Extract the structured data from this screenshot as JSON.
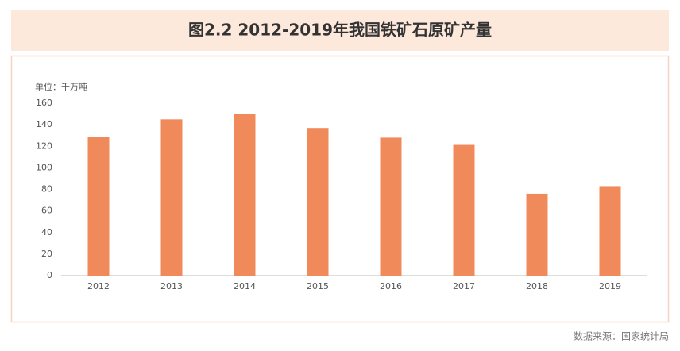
{
  "chart_data": {
    "type": "bar",
    "title": "图2.2 2012-2019年我国铁矿石原矿产量",
    "y_label": "单位：千万吨",
    "source": "数据来源：国家统计局",
    "categories": [
      "2012",
      "2013",
      "2014",
      "2015",
      "2016",
      "2017",
      "2018",
      "2019"
    ],
    "values": [
      129,
      145,
      150,
      137,
      128,
      122,
      76,
      83
    ],
    "color": "#f08a5a",
    "ylim": [
      0,
      160
    ],
    "yticks": [
      0,
      20,
      40,
      60,
      80,
      100,
      120,
      140,
      160
    ],
    "grid": false
  }
}
